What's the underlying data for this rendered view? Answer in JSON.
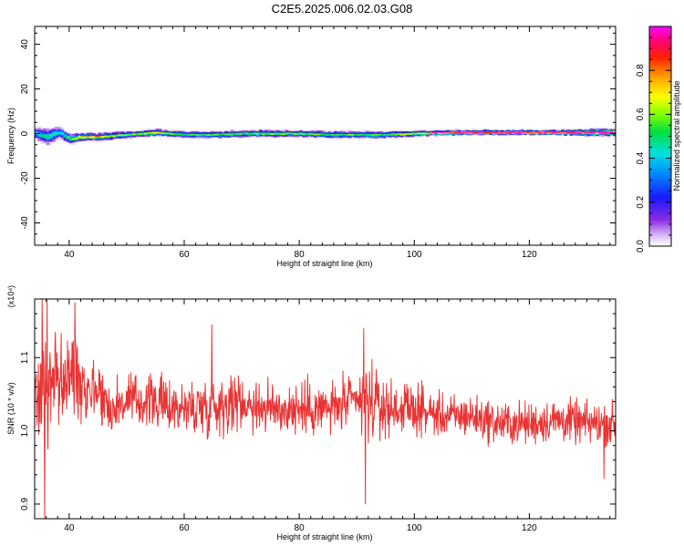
{
  "title": "C2E5.2025.006.02.03.G08",
  "chart_data": [
    {
      "type": "heatmap",
      "xlabel": "Height of straight line (km)",
      "ylabel": "Frequency (Hz)",
      "xlim": [
        34,
        135
      ],
      "ylim": [
        -50,
        48
      ],
      "xticks": [
        40,
        60,
        80,
        100,
        120
      ],
      "yticks": [
        40,
        20,
        0,
        -20,
        -40
      ],
      "colorbar": {
        "label": "Normalized spectral amplitude",
        "ticks": [
          "0.0",
          "0.2",
          "0.4",
          "0.6",
          "0.8"
        ],
        "range": [
          0,
          1
        ]
      },
      "ridge": {
        "x": [
          34,
          36,
          38,
          40,
          42,
          45,
          50,
          55,
          60,
          65,
          70,
          75,
          80,
          85,
          90,
          95,
          100,
          103,
          108,
          115,
          125,
          130,
          135
        ],
        "frequency": [
          0,
          -1.5,
          0.5,
          -2.5,
          -1.5,
          -1.5,
          -0.5,
          0.5,
          -0.5,
          -0.5,
          0,
          0,
          0,
          -0.5,
          -0.5,
          -0.5,
          0,
          0.2,
          0.5,
          0.5,
          0.5,
          0.5,
          0.5
        ],
        "amplitude": [
          0.45,
          0.5,
          0.45,
          0.55,
          0.8,
          0.75,
          0.55,
          0.7,
          0.55,
          0.55,
          0.55,
          0.6,
          0.6,
          0.55,
          0.6,
          0.55,
          0.7,
          0.95,
          1.0,
          1.0,
          1.0,
          1.0,
          1.0
        ],
        "width_hz": [
          6,
          8,
          6,
          5,
          4,
          4,
          3.5,
          3.5,
          3.5,
          3.5,
          3.5,
          3.5,
          3.5,
          3.5,
          3.5,
          3.5,
          3,
          2.5,
          2.5,
          2.5,
          2.5,
          3.5,
          3.5
        ]
      }
    },
    {
      "type": "line",
      "xlabel": "Height of straight line (km)",
      "ylabel": "SNR (10 * v/v)",
      "y_scale_label": "(x10⁴)",
      "xlim": [
        34,
        135
      ],
      "ylim": [
        0.88,
        1.18
      ],
      "xticks": [
        40,
        60,
        80,
        100,
        120
      ],
      "yticks": [
        "0.9",
        "1.0",
        "1.1"
      ],
      "line_color": "#e83434",
      "series": [
        {
          "x": [
            34,
            35,
            36,
            37,
            38,
            40,
            41,
            43,
            45,
            47,
            50,
            55,
            60,
            65,
            70,
            75,
            80,
            85,
            90,
            91.5,
            95,
            100,
            105,
            110,
            115,
            120,
            125,
            130,
            135
          ],
          "center": [
            1.04,
            1.06,
            1.07,
            1.06,
            1.07,
            1.07,
            1.09,
            1.06,
            1.06,
            1.03,
            1.04,
            1.04,
            1.03,
            1.035,
            1.04,
            1.03,
            1.03,
            1.03,
            1.04,
            1.04,
            1.03,
            1.03,
            1.02,
            1.02,
            1.01,
            1.01,
            1.015,
            1.01,
            1.01
          ],
          "spread": [
            0.03,
            0.06,
            0.08,
            0.05,
            0.04,
            0.04,
            0.05,
            0.03,
            0.03,
            0.025,
            0.025,
            0.025,
            0.025,
            0.03,
            0.025,
            0.025,
            0.025,
            0.025,
            0.025,
            0.04,
            0.025,
            0.022,
            0.02,
            0.02,
            0.02,
            0.02,
            0.02,
            0.02,
            0.02
          ],
          "extremes": [
            {
              "x": 35.3,
              "y": 1.18
            },
            {
              "x": 35.7,
              "y": 0.88
            },
            {
              "x": 41.0,
              "y": 1.175
            },
            {
              "x": 64.8,
              "y": 1.145
            },
            {
              "x": 91.2,
              "y": 1.14
            },
            {
              "x": 91.5,
              "y": 0.9
            },
            {
              "x": 133.0,
              "y": 0.935
            }
          ]
        }
      ]
    }
  ]
}
